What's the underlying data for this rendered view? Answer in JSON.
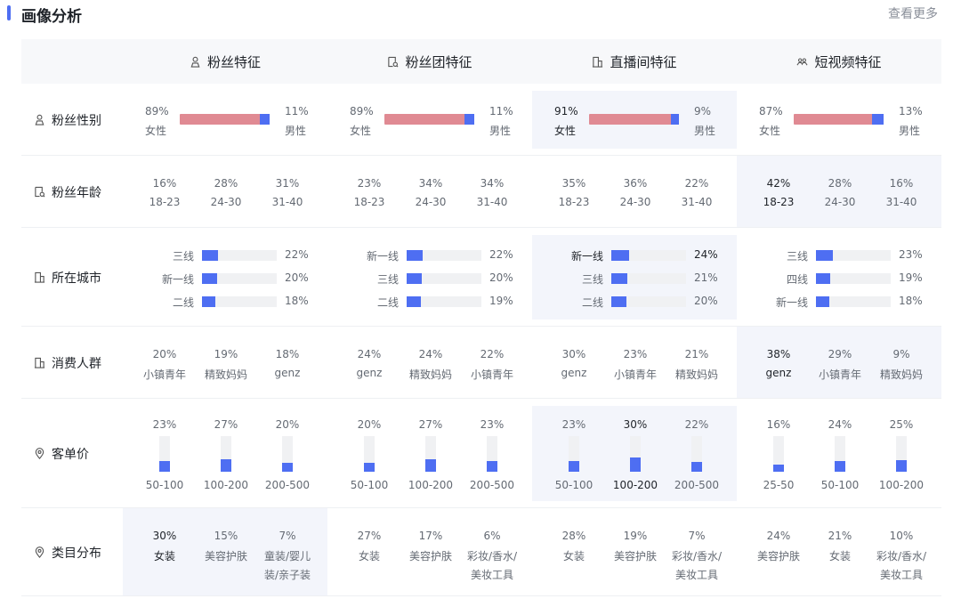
{
  "header": {
    "title": "画像分析",
    "more": "查看更多"
  },
  "columns": [
    {
      "label": "粉丝特征",
      "icon": "person-icon"
    },
    {
      "label": "粉丝团特征",
      "icon": "fan-group-icon"
    },
    {
      "label": "直播间特征",
      "icon": "building-icon"
    },
    {
      "label": "短视频特征",
      "icon": "group-icon"
    }
  ],
  "rows": {
    "gender": {
      "label": "粉丝性别",
      "icon": "person-icon"
    },
    "age": {
      "label": "粉丝年龄",
      "icon": "fan-group-icon"
    },
    "city": {
      "label": "所在城市",
      "icon": "building-icon"
    },
    "consumer": {
      "label": "消费人群",
      "icon": "building-icon"
    },
    "price": {
      "label": "客单价",
      "icon": "location-pin-icon"
    },
    "category": {
      "label": "类目分布",
      "icon": "location-pin-icon"
    }
  },
  "gender": [
    {
      "female_pct": "89%",
      "male_pct": "11%",
      "female": "女性",
      "male": "男性",
      "female_ratio": 0.89
    },
    {
      "female_pct": "89%",
      "male_pct": "11%",
      "female": "女性",
      "male": "男性",
      "female_ratio": 0.89
    },
    {
      "female_pct": "91%",
      "male_pct": "9%",
      "female": "女性",
      "male": "男性",
      "female_ratio": 0.91
    },
    {
      "female_pct": "87%",
      "male_pct": "13%",
      "female": "女性",
      "male": "男性",
      "female_ratio": 0.87
    }
  ],
  "age": [
    [
      {
        "pct": "16%",
        "label": "18-23"
      },
      {
        "pct": "28%",
        "label": "24-30"
      },
      {
        "pct": "31%",
        "label": "31-40"
      }
    ],
    [
      {
        "pct": "23%",
        "label": "18-23"
      },
      {
        "pct": "34%",
        "label": "24-30"
      },
      {
        "pct": "34%",
        "label": "31-40"
      }
    ],
    [
      {
        "pct": "35%",
        "label": "18-23"
      },
      {
        "pct": "36%",
        "label": "24-30"
      },
      {
        "pct": "22%",
        "label": "31-40"
      }
    ],
    [
      {
        "pct": "42%",
        "label": "18-23"
      },
      {
        "pct": "28%",
        "label": "24-30"
      },
      {
        "pct": "16%",
        "label": "31-40"
      }
    ]
  ],
  "city": [
    [
      {
        "label": "三线",
        "pct": "22%",
        "ratio": 0.22
      },
      {
        "label": "新一线",
        "pct": "20%",
        "ratio": 0.2
      },
      {
        "label": "二线",
        "pct": "18%",
        "ratio": 0.18
      }
    ],
    [
      {
        "label": "新一线",
        "pct": "22%",
        "ratio": 0.22
      },
      {
        "label": "三线",
        "pct": "20%",
        "ratio": 0.2
      },
      {
        "label": "二线",
        "pct": "19%",
        "ratio": 0.19
      }
    ],
    [
      {
        "label": "新一线",
        "pct": "24%",
        "ratio": 0.24
      },
      {
        "label": "三线",
        "pct": "21%",
        "ratio": 0.21
      },
      {
        "label": "二线",
        "pct": "20%",
        "ratio": 0.2
      }
    ],
    [
      {
        "label": "三线",
        "pct": "23%",
        "ratio": 0.23
      },
      {
        "label": "四线",
        "pct": "19%",
        "ratio": 0.19
      },
      {
        "label": "新一线",
        "pct": "18%",
        "ratio": 0.18
      }
    ]
  ],
  "consumer": [
    [
      {
        "pct": "20%",
        "label": "小镇青年"
      },
      {
        "pct": "19%",
        "label": "精致妈妈"
      },
      {
        "pct": "18%",
        "label": "genz"
      }
    ],
    [
      {
        "pct": "24%",
        "label": "genz"
      },
      {
        "pct": "24%",
        "label": "精致妈妈"
      },
      {
        "pct": "22%",
        "label": "小镇青年"
      }
    ],
    [
      {
        "pct": "30%",
        "label": "genz"
      },
      {
        "pct": "23%",
        "label": "小镇青年"
      },
      {
        "pct": "21%",
        "label": "精致妈妈"
      }
    ],
    [
      {
        "pct": "38%",
        "label": "genz"
      },
      {
        "pct": "29%",
        "label": "小镇青年"
      },
      {
        "pct": "9%",
        "label": "精致妈妈"
      }
    ]
  ],
  "price": [
    [
      {
        "pct": "23%",
        "label": "50-100",
        "ratio": 0.23
      },
      {
        "pct": "27%",
        "label": "100-200",
        "ratio": 0.27
      },
      {
        "pct": "20%",
        "label": "200-500",
        "ratio": 0.2
      }
    ],
    [
      {
        "pct": "20%",
        "label": "50-100",
        "ratio": 0.2
      },
      {
        "pct": "27%",
        "label": "100-200",
        "ratio": 0.27
      },
      {
        "pct": "23%",
        "label": "200-500",
        "ratio": 0.23
      }
    ],
    [
      {
        "pct": "23%",
        "label": "50-100",
        "ratio": 0.23
      },
      {
        "pct": "30%",
        "label": "100-200",
        "ratio": 0.3
      },
      {
        "pct": "22%",
        "label": "200-500",
        "ratio": 0.22
      }
    ],
    [
      {
        "pct": "16%",
        "label": "25-50",
        "ratio": 0.16
      },
      {
        "pct": "24%",
        "label": "50-100",
        "ratio": 0.24
      },
      {
        "pct": "25%",
        "label": "100-200",
        "ratio": 0.25
      }
    ]
  ],
  "category": [
    [
      {
        "pct": "30%",
        "l1": "女装",
        "l2": ""
      },
      {
        "pct": "15%",
        "l1": "美容护肤",
        "l2": ""
      },
      {
        "pct": "7%",
        "l1": "童装/婴儿",
        "l2": "装/亲子装"
      }
    ],
    [
      {
        "pct": "27%",
        "l1": "女装",
        "l2": ""
      },
      {
        "pct": "17%",
        "l1": "美容护肤",
        "l2": ""
      },
      {
        "pct": "6%",
        "l1": "彩妆/香水/",
        "l2": "美妆工具"
      }
    ],
    [
      {
        "pct": "28%",
        "l1": "女装",
        "l2": ""
      },
      {
        "pct": "19%",
        "l1": "美容护肤",
        "l2": ""
      },
      {
        "pct": "7%",
        "l1": "彩妆/香水/",
        "l2": "美妆工具"
      }
    ],
    [
      {
        "pct": "24%",
        "l1": "美容护肤",
        "l2": ""
      },
      {
        "pct": "21%",
        "l1": "女装",
        "l2": ""
      },
      {
        "pct": "10%",
        "l1": "彩妆/香水/",
        "l2": "美妆工具"
      }
    ]
  ],
  "highlight": {
    "gender": 2,
    "age": 3,
    "city": 2,
    "consumer": 3,
    "price": 2,
    "category": 0
  },
  "colors": {
    "accent": "#4e6ef2",
    "female": "#e08a93",
    "highlight": "#f3f5fb"
  }
}
